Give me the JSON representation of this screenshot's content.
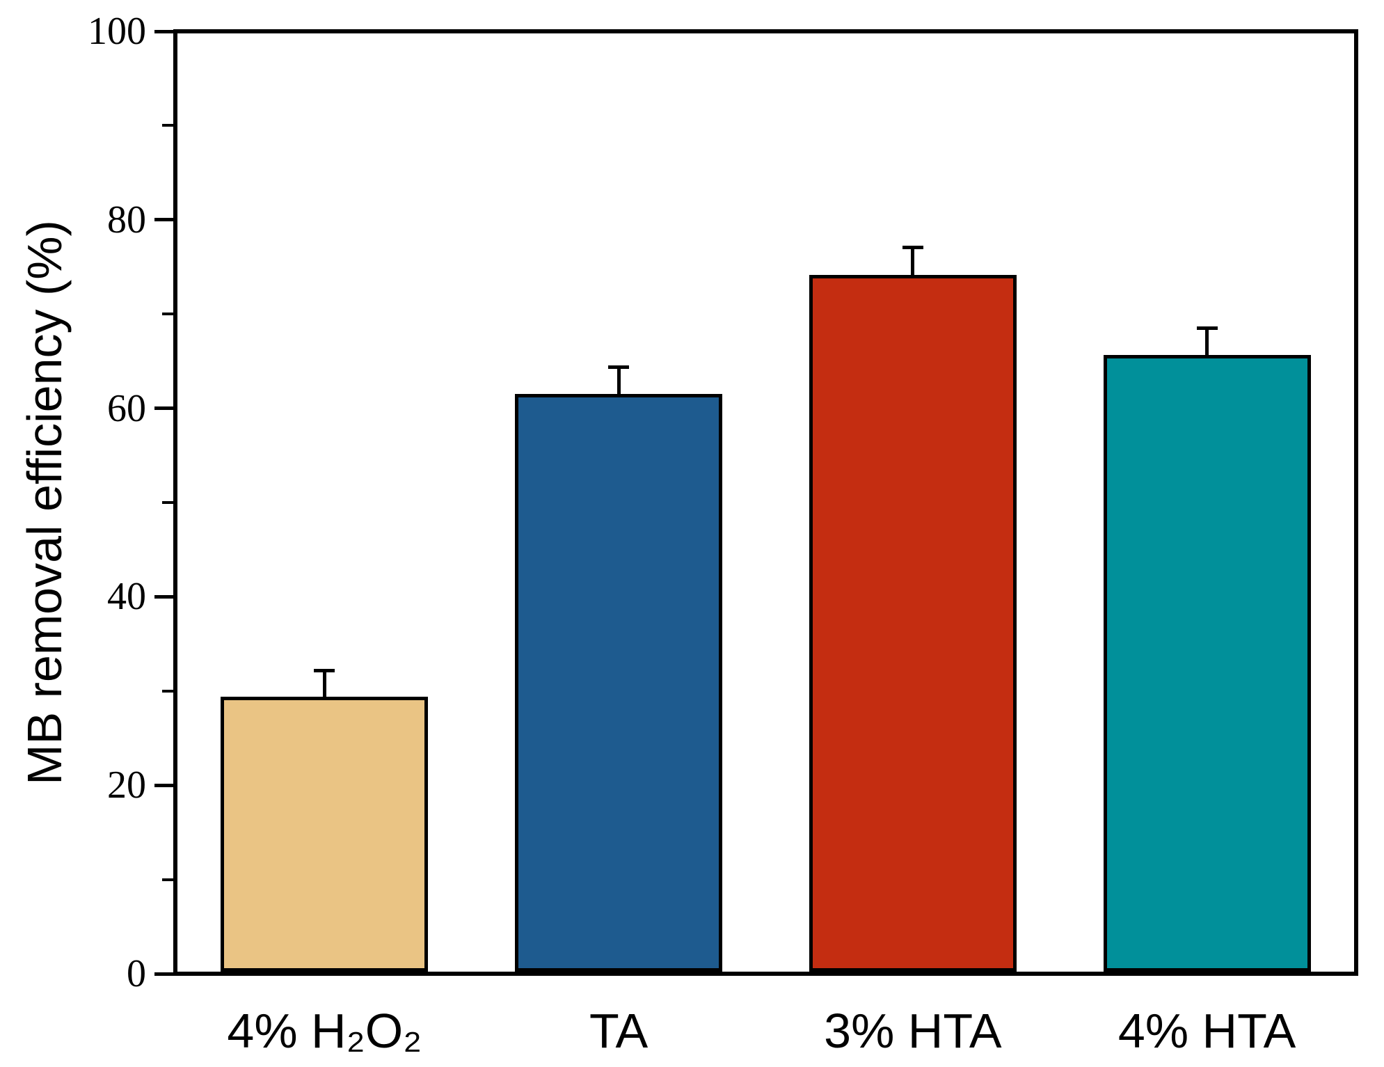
{
  "chart_data": {
    "type": "bar",
    "title": "",
    "xlabel": "",
    "ylabel": "MB removal efficiency (%)",
    "categories": [
      "4% H₂O₂",
      "TA",
      "3% HTA",
      "4% HTA"
    ],
    "values": [
      29.2,
      61.3,
      74.0,
      65.5
    ],
    "errors": [
      3.0,
      3.1,
      3.1,
      3.0
    ],
    "bar_colors": [
      "#EAC484",
      "#1E5B8F",
      "#C42D11",
      "#01909A"
    ],
    "ylim": [
      0,
      100
    ],
    "yticks_major": [
      0,
      20,
      40,
      60,
      80,
      100
    ],
    "yticks_minor": [
      10,
      30,
      50,
      70,
      90
    ],
    "grid": false,
    "legend": false,
    "error_bar_style": "upper-cap",
    "ink_color": "#000000",
    "background_color": "#FFFFFF"
  }
}
